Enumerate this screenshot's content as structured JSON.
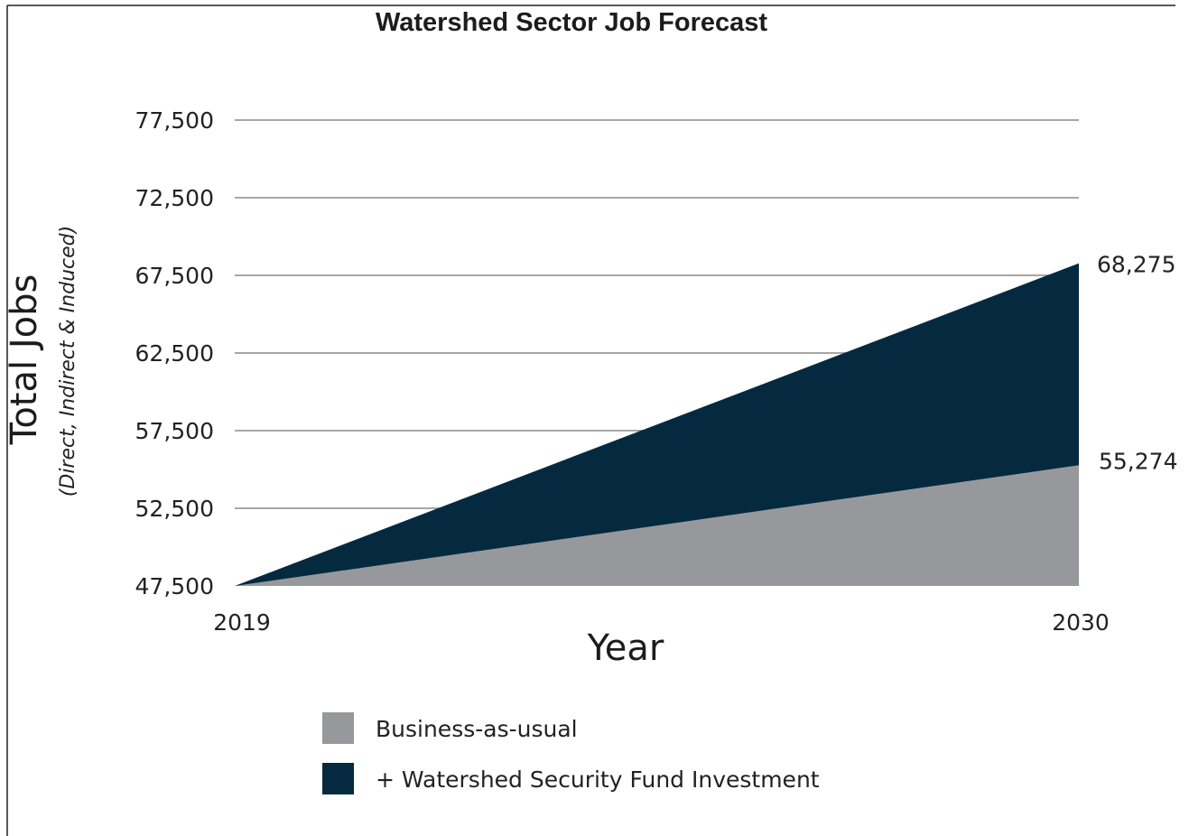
{
  "chart_data": {
    "type": "area",
    "title": "Watershed Sector Job Forecast",
    "xlabel": "Year",
    "ylabel": "Total Jobs",
    "ylabel_sub": "(Direct, Indirect & Induced)",
    "x": [
      2019,
      2030
    ],
    "x_tick_labels": [
      "2019",
      "2030"
    ],
    "ylim": [
      47500,
      77500
    ],
    "y_ticks": [
      47500,
      52500,
      57500,
      62500,
      67500,
      72500,
      77500
    ],
    "y_tick_labels": [
      "47,500",
      "52,500",
      "57,500",
      "62,500",
      "67,500",
      "72,500",
      "77,500"
    ],
    "grid": true,
    "legend_position": "bottom",
    "series": [
      {
        "name": "Business-as-usual",
        "values": [
          47500,
          55274
        ],
        "end_label": "55,274",
        "color": "#97989b"
      },
      {
        "name": "+ Watershed Security Fund Investment",
        "values": [
          47500,
          68275
        ],
        "end_label": "68,275",
        "color": "#052a40"
      }
    ]
  }
}
